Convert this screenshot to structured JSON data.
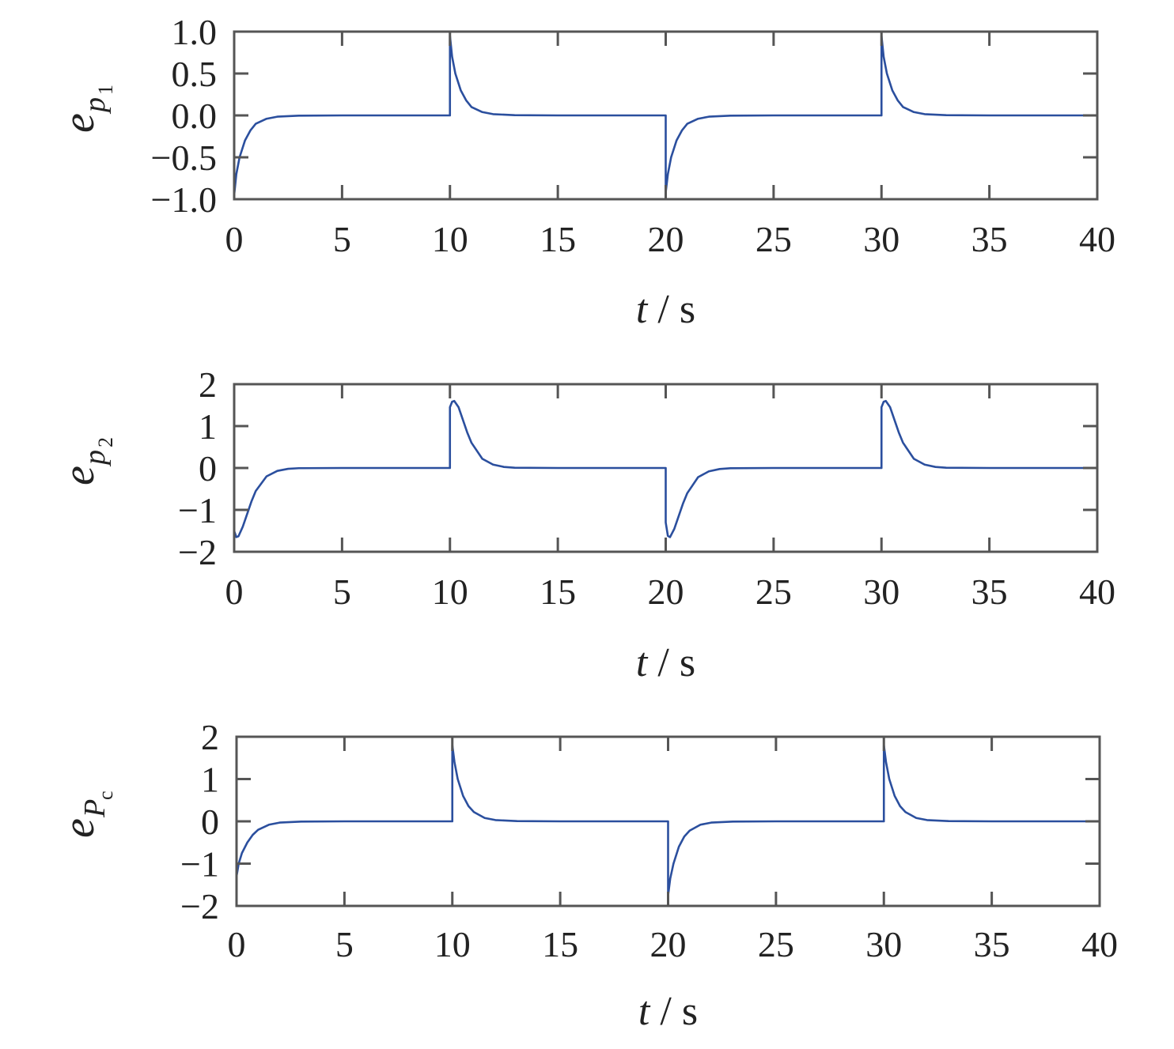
{
  "chart_data": [
    {
      "type": "line",
      "ylabel": {
        "base": "e",
        "sub": "p",
        "subsub": "1"
      },
      "xlabel": {
        "var": "t",
        "unit": " / s"
      },
      "xlim": [
        0,
        40
      ],
      "ylim": [
        -1,
        1
      ],
      "xticks": [
        0,
        5,
        10,
        15,
        20,
        25,
        30,
        35,
        40
      ],
      "xtick_labels": [
        "0",
        "5",
        "10",
        "15",
        "20",
        "25",
        "30",
        "35",
        "40"
      ],
      "yticks": [
        -1,
        -0.5,
        0,
        0.5,
        1
      ],
      "ytick_labels": [
        "−1.0",
        "−0.5",
        "0.0",
        "0.5",
        "1.0"
      ],
      "grid": false,
      "series": [
        {
          "color": "#2b4f9e",
          "points": [
            [
              0,
              -0.95
            ],
            [
              0.1,
              -0.7
            ],
            [
              0.25,
              -0.5
            ],
            [
              0.5,
              -0.3
            ],
            [
              0.75,
              -0.18
            ],
            [
              1,
              -0.1
            ],
            [
              1.5,
              -0.04
            ],
            [
              2,
              -0.015
            ],
            [
              3,
              -0.003
            ],
            [
              5,
              0
            ],
            [
              10,
              0
            ],
            [
              10,
              0.95
            ],
            [
              10.1,
              0.7
            ],
            [
              10.25,
              0.5
            ],
            [
              10.5,
              0.3
            ],
            [
              10.75,
              0.18
            ],
            [
              11,
              0.1
            ],
            [
              11.5,
              0.04
            ],
            [
              12,
              0.015
            ],
            [
              13,
              0.003
            ],
            [
              15,
              0
            ],
            [
              20,
              0
            ],
            [
              20,
              -0.92
            ],
            [
              20.1,
              -0.7
            ],
            [
              20.25,
              -0.5
            ],
            [
              20.5,
              -0.3
            ],
            [
              20.75,
              -0.18
            ],
            [
              21,
              -0.1
            ],
            [
              21.5,
              -0.04
            ],
            [
              22,
              -0.015
            ],
            [
              23,
              -0.003
            ],
            [
              25,
              0
            ],
            [
              30,
              0
            ],
            [
              30,
              0.95
            ],
            [
              30.1,
              0.7
            ],
            [
              30.25,
              0.5
            ],
            [
              30.5,
              0.3
            ],
            [
              30.75,
              0.18
            ],
            [
              31,
              0.1
            ],
            [
              31.5,
              0.04
            ],
            [
              32,
              0.015
            ],
            [
              33,
              0.003
            ],
            [
              35,
              0
            ],
            [
              40,
              0
            ]
          ]
        }
      ]
    },
    {
      "type": "line",
      "ylabel": {
        "base": "e",
        "sub": "p",
        "subsub": "2"
      },
      "xlabel": {
        "var": "t",
        "unit": " / s"
      },
      "xlim": [
        0,
        40
      ],
      "ylim": [
        -2,
        2
      ],
      "xticks": [
        0,
        5,
        10,
        15,
        20,
        25,
        30,
        35,
        40
      ],
      "xtick_labels": [
        "0",
        "5",
        "10",
        "15",
        "20",
        "25",
        "30",
        "35",
        "40"
      ],
      "yticks": [
        -2,
        -1,
        0,
        1,
        2
      ],
      "ytick_labels": [
        "−2",
        "−1",
        "0",
        "1",
        "2"
      ],
      "grid": false,
      "series": [
        {
          "color": "#2b4f9e",
          "points": [
            [
              0,
              -1.5
            ],
            [
              0.1,
              -1.65
            ],
            [
              0.2,
              -1.63
            ],
            [
              0.4,
              -1.4
            ],
            [
              0.6,
              -1.1
            ],
            [
              0.8,
              -0.8
            ],
            [
              1,
              -0.55
            ],
            [
              1.5,
              -0.2
            ],
            [
              2,
              -0.07
            ],
            [
              2.5,
              -0.02
            ],
            [
              3,
              -0.005
            ],
            [
              5,
              0
            ],
            [
              10,
              0
            ],
            [
              10,
              1.45
            ],
            [
              10.1,
              1.58
            ],
            [
              10.2,
              1.6
            ],
            [
              10.4,
              1.45
            ],
            [
              10.6,
              1.15
            ],
            [
              10.8,
              0.85
            ],
            [
              11,
              0.6
            ],
            [
              11.5,
              0.22
            ],
            [
              12,
              0.08
            ],
            [
              12.5,
              0.025
            ],
            [
              13,
              0.006
            ],
            [
              15,
              0
            ],
            [
              20,
              0
            ],
            [
              20,
              -1.3
            ],
            [
              20.1,
              -1.62
            ],
            [
              20.2,
              -1.65
            ],
            [
              20.4,
              -1.45
            ],
            [
              20.6,
              -1.15
            ],
            [
              20.8,
              -0.85
            ],
            [
              21,
              -0.6
            ],
            [
              21.5,
              -0.22
            ],
            [
              22,
              -0.08
            ],
            [
              22.5,
              -0.025
            ],
            [
              23,
              -0.006
            ],
            [
              25,
              0
            ],
            [
              30,
              0
            ],
            [
              30,
              1.45
            ],
            [
              30.1,
              1.58
            ],
            [
              30.2,
              1.6
            ],
            [
              30.4,
              1.45
            ],
            [
              30.6,
              1.15
            ],
            [
              30.8,
              0.85
            ],
            [
              31,
              0.6
            ],
            [
              31.5,
              0.22
            ],
            [
              32,
              0.08
            ],
            [
              32.5,
              0.025
            ],
            [
              33,
              0.006
            ],
            [
              35,
              0
            ],
            [
              40,
              0
            ]
          ]
        }
      ]
    },
    {
      "type": "line",
      "ylabel": {
        "base": "e",
        "sub": "P",
        "subsub": "c"
      },
      "xlabel": {
        "var": "t",
        "unit": " / s"
      },
      "xlim": [
        0,
        40
      ],
      "ylim": [
        -2,
        2
      ],
      "xticks": [
        0,
        5,
        10,
        15,
        20,
        25,
        30,
        35,
        40
      ],
      "xtick_labels": [
        "0",
        "5",
        "10",
        "15",
        "20",
        "25",
        "30",
        "35",
        "40"
      ],
      "yticks": [
        -2,
        -1,
        0,
        1,
        2
      ],
      "ytick_labels": [
        "−2",
        "−1",
        "0",
        "1",
        "2"
      ],
      "grid": false,
      "series": [
        {
          "color": "#2b4f9e",
          "points": [
            [
              0,
              -1.3
            ],
            [
              0.1,
              -1.0
            ],
            [
              0.25,
              -0.75
            ],
            [
              0.5,
              -0.5
            ],
            [
              0.75,
              -0.32
            ],
            [
              1,
              -0.2
            ],
            [
              1.5,
              -0.08
            ],
            [
              2,
              -0.03
            ],
            [
              3,
              -0.005
            ],
            [
              5,
              0
            ],
            [
              10,
              0
            ],
            [
              10,
              1.8
            ],
            [
              10.1,
              1.4
            ],
            [
              10.25,
              1.0
            ],
            [
              10.5,
              0.6
            ],
            [
              10.75,
              0.36
            ],
            [
              11,
              0.22
            ],
            [
              11.5,
              0.08
            ],
            [
              12,
              0.03
            ],
            [
              13,
              0.005
            ],
            [
              15,
              0
            ],
            [
              20,
              0
            ],
            [
              20,
              -1.75
            ],
            [
              20.1,
              -1.35
            ],
            [
              20.25,
              -1.0
            ],
            [
              20.5,
              -0.6
            ],
            [
              20.75,
              -0.36
            ],
            [
              21,
              -0.22
            ],
            [
              21.5,
              -0.08
            ],
            [
              22,
              -0.03
            ],
            [
              23,
              -0.005
            ],
            [
              25,
              0
            ],
            [
              30,
              0
            ],
            [
              30,
              1.8
            ],
            [
              30.1,
              1.4
            ],
            [
              30.25,
              1.0
            ],
            [
              30.5,
              0.6
            ],
            [
              30.75,
              0.36
            ],
            [
              31,
              0.22
            ],
            [
              31.5,
              0.08
            ],
            [
              32,
              0.03
            ],
            [
              33,
              0.005
            ],
            [
              35,
              0
            ],
            [
              40,
              0
            ]
          ]
        }
      ]
    }
  ]
}
